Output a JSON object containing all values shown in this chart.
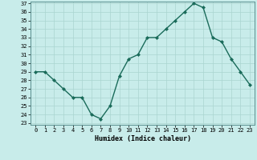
{
  "x": [
    0,
    1,
    2,
    3,
    4,
    5,
    6,
    7,
    8,
    9,
    10,
    11,
    12,
    13,
    14,
    15,
    16,
    17,
    18,
    19,
    20,
    21,
    22,
    23
  ],
  "y": [
    29,
    29,
    28,
    27,
    26,
    26,
    24,
    23.5,
    25,
    28.5,
    30.5,
    31,
    33,
    33,
    34,
    35,
    36,
    37,
    36.5,
    33,
    32.5,
    30.5,
    29,
    27.5
  ],
  "line_color": "#1a6b5a",
  "bg_color": "#c8ecea",
  "grid_color": "#aad4d0",
  "xlabel": "Humidex (Indice chaleur)",
  "ylim": [
    23,
    37
  ],
  "xlim": [
    -0.5,
    23.5
  ],
  "yticks": [
    23,
    24,
    25,
    26,
    27,
    28,
    29,
    30,
    31,
    32,
    33,
    34,
    35,
    36,
    37
  ],
  "xticks": [
    0,
    1,
    2,
    3,
    4,
    5,
    6,
    7,
    8,
    9,
    10,
    11,
    12,
    13,
    14,
    15,
    16,
    17,
    18,
    19,
    20,
    21,
    22,
    23
  ]
}
